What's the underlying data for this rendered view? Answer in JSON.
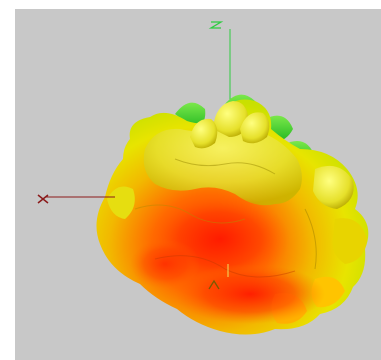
{
  "viewport": {
    "background": "#c8c8c8"
  },
  "axes": {
    "z": {
      "label": "Z",
      "color": "#2ecc40"
    },
    "x": {
      "label": "X",
      "color": "#8b1a1a"
    },
    "y": {
      "label": "Y",
      "color": "#f0e060"
    }
  },
  "surface": {
    "colormap": [
      "#ff2200",
      "#ff8c00",
      "#ffd700",
      "#ffff33",
      "#22cc22"
    ],
    "description_icon": "3d-radiation-pattern"
  }
}
